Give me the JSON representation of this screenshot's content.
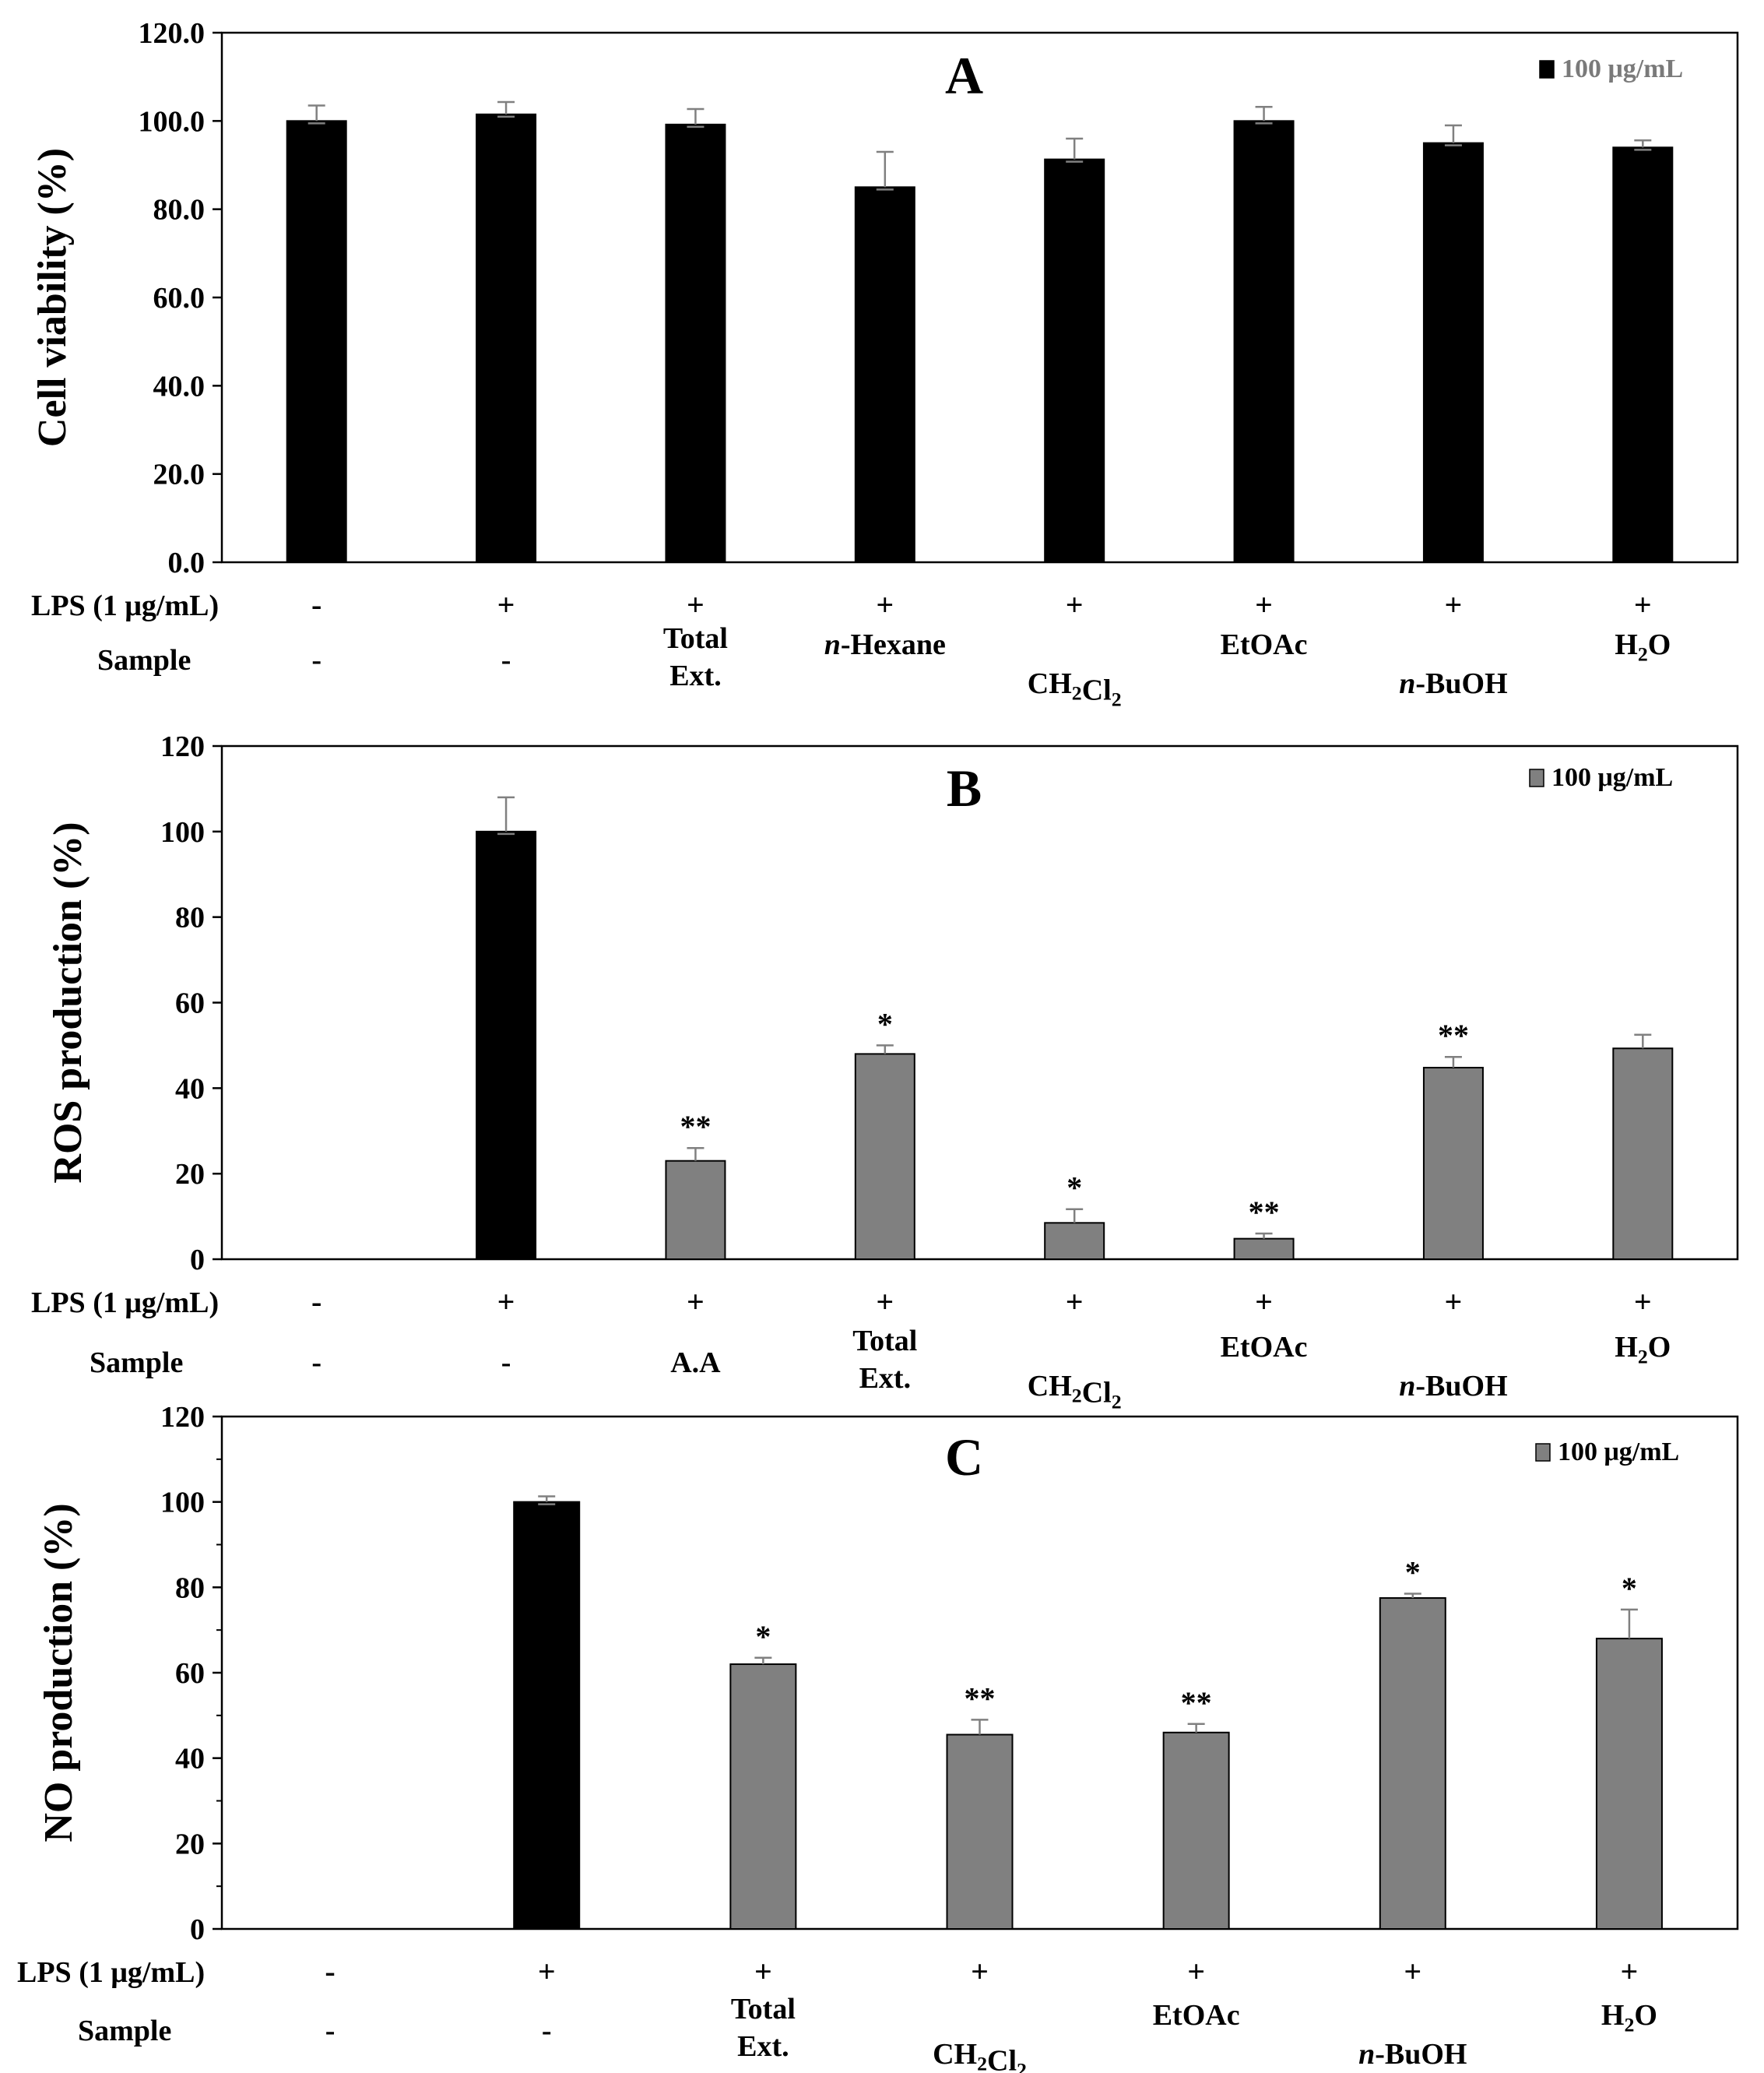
{
  "chart_data": [
    {
      "type": "bar",
      "panel_label": "A",
      "ylabel": "Cell viability (%)",
      "ylim": [
        0,
        120
      ],
      "yticks": [
        "0.0",
        "20.0",
        "40.0",
        "60.0",
        "80.0",
        "100.0",
        "120.0"
      ],
      "legend": {
        "label": "100 μg/mL",
        "swatch_color": "#000000",
        "placement": "top-right"
      },
      "row_labels": {
        "lps": "LPS (1 μg/mL)",
        "sample": "Sample"
      },
      "categories": [
        {
          "lps": "-",
          "sample": [
            "-"
          ],
          "value": 100.0,
          "error": 3.5,
          "color": "#000000",
          "sig": ""
        },
        {
          "lps": "+",
          "sample": [
            "-"
          ],
          "value": 101.5,
          "error": 2.8,
          "color": "#000000",
          "sig": ""
        },
        {
          "lps": "+",
          "sample": [
            "Total",
            "Ext."
          ],
          "value": 99.2,
          "error": 3.5,
          "color": "#000000",
          "sig": ""
        },
        {
          "lps": "+",
          "sample": [
            "n-Hexane"
          ],
          "value": 85.0,
          "error": 8.0,
          "color": "#000000",
          "sig": ""
        },
        {
          "lps": "+",
          "sample": [
            "CH2Cl2"
          ],
          "value": 91.3,
          "error": 4.7,
          "color": "#000000",
          "sig": ""
        },
        {
          "lps": "+",
          "sample": [
            "EtOAc"
          ],
          "value": 100.0,
          "error": 3.2,
          "color": "#000000",
          "sig": ""
        },
        {
          "lps": "+",
          "sample": [
            "n-BuOH"
          ],
          "value": 95.0,
          "error": 4.0,
          "color": "#000000",
          "sig": ""
        },
        {
          "lps": "+",
          "sample": [
            "H2O"
          ],
          "value": 94.0,
          "error": 1.6,
          "color": "#000000",
          "sig": ""
        }
      ]
    },
    {
      "type": "bar",
      "panel_label": "B",
      "ylabel": "ROS production (%)",
      "ylim": [
        0,
        120
      ],
      "yticks": [
        "0",
        "20",
        "40",
        "60",
        "80",
        "100",
        "120"
      ],
      "legend": {
        "label": "100 μg/mL",
        "swatch_color": "#808080",
        "placement": "top-right"
      },
      "row_labels": {
        "lps": "LPS (1 μg/mL)",
        "sample": "Sample"
      },
      "categories": [
        {
          "lps": "-",
          "sample": [
            "-"
          ],
          "value": null,
          "error": null,
          "color": "#808080",
          "sig": ""
        },
        {
          "lps": "+",
          "sample": [
            "-"
          ],
          "value": 100.0,
          "error": 8.0,
          "color": "#000000",
          "sig": ""
        },
        {
          "lps": "+",
          "sample": [
            "A.A"
          ],
          "value": 23.0,
          "error": 3.0,
          "color": "#808080",
          "sig": "**"
        },
        {
          "lps": "+",
          "sample": [
            "Total",
            "Ext."
          ],
          "value": 48.0,
          "error": 2.0,
          "color": "#808080",
          "sig": "*"
        },
        {
          "lps": "+",
          "sample": [
            "CH2Cl2"
          ],
          "value": 8.5,
          "error": 3.2,
          "color": "#808080",
          "sig": "*"
        },
        {
          "lps": "+",
          "sample": [
            "EtOAc"
          ],
          "value": 4.8,
          "error": 1.2,
          "color": "#808080",
          "sig": "**"
        },
        {
          "lps": "+",
          "sample": [
            "n-BuOH"
          ],
          "value": 44.8,
          "error": 2.5,
          "color": "#808080",
          "sig": "**"
        },
        {
          "lps": "+",
          "sample": [
            "H2O"
          ],
          "value": 49.3,
          "error": 3.2,
          "color": "#808080",
          "sig": ""
        }
      ]
    },
    {
      "type": "bar",
      "panel_label": "C",
      "ylabel": "NO production (%)",
      "ylim": [
        0,
        120
      ],
      "yticks": [
        "0",
        "20",
        "40",
        "60",
        "80",
        "100",
        "120"
      ],
      "legend": {
        "label": "100 μg/mL",
        "swatch_color": "#808080",
        "placement": "top-right"
      },
      "row_labels": {
        "lps": "LPS (1 μg/mL)",
        "sample": "Sample"
      },
      "categories": [
        {
          "lps": "-",
          "sample": [
            "-"
          ],
          "value": null,
          "error": null,
          "color": "#808080",
          "sig": ""
        },
        {
          "lps": "+",
          "sample": [
            "-"
          ],
          "value": 100.0,
          "error": 1.3,
          "color": "#000000",
          "sig": ""
        },
        {
          "lps": "+",
          "sample": [
            "Total",
            "Ext."
          ],
          "value": 62.0,
          "error": 1.5,
          "color": "#808080",
          "sig": "*"
        },
        {
          "lps": "+",
          "sample": [
            "CH2Cl2"
          ],
          "value": 45.5,
          "error": 3.5,
          "color": "#808080",
          "sig": "**"
        },
        {
          "lps": "+",
          "sample": [
            "EtOAc"
          ],
          "value": 46.0,
          "error": 2.0,
          "color": "#808080",
          "sig": "**"
        },
        {
          "lps": "+",
          "sample": [
            "n-BuOH"
          ],
          "value": 77.5,
          "error": 1.0,
          "color": "#808080",
          "sig": "*"
        },
        {
          "lps": "+",
          "sample": [
            "H2O"
          ],
          "value": 68.0,
          "error": 6.8,
          "color": "#808080",
          "sig": "*"
        }
      ]
    }
  ]
}
